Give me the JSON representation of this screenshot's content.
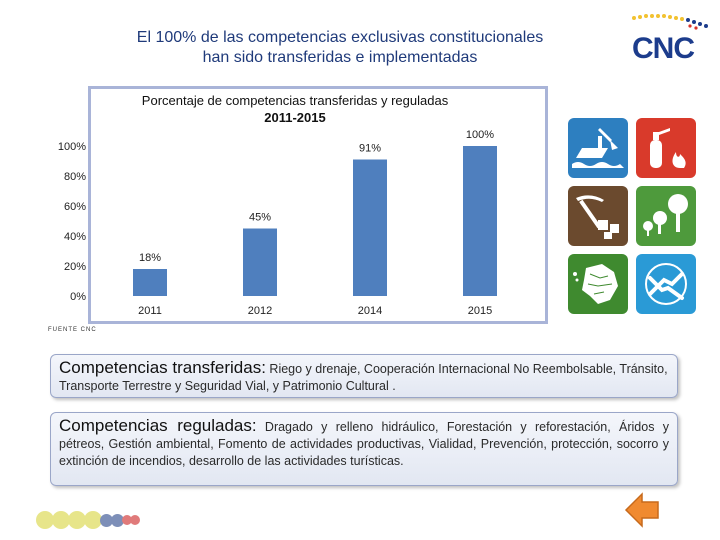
{
  "slide": {
    "title_line1": "El 100% de las competencias exclusivas constitucionales",
    "title_line2": "han sido transferidas e implementadas"
  },
  "logo": {
    "text": "CNC"
  },
  "chart_data": {
    "type": "bar",
    "title_line1": "Porcentaje de competencias transferidas y reguladas",
    "title_line2": "2011-2015",
    "categories": [
      "2011",
      "2012",
      "2014",
      "2015"
    ],
    "values": [
      18,
      45,
      91,
      100
    ],
    "value_labels": [
      "18%",
      "45%",
      "91%",
      "100%"
    ],
    "ytick_values": [
      0,
      20,
      40,
      60,
      80,
      100
    ],
    "ytick_labels": [
      "0%",
      "20%",
      "40%",
      "60%",
      "80%",
      "100%"
    ],
    "ylim": [
      0,
      100
    ],
    "bar_color": "#4f7fbe",
    "grid": false,
    "legend": "none",
    "xlabel": "",
    "ylabel": ""
  },
  "source_note": "FUENTE CNC",
  "icons": [
    {
      "name": "dredge-icon",
      "color": "#2d7fc0"
    },
    {
      "name": "fire-extinguisher-icon",
      "color": "#d93a2b"
    },
    {
      "name": "mining-icon",
      "color": "#6b4a2e"
    },
    {
      "name": "forest-icon",
      "color": "#4e9a3c"
    },
    {
      "name": "ecuador-map-icon",
      "color": "#3f8a2f"
    },
    {
      "name": "cooperation-hands-icon",
      "color": "#2a9ad6"
    }
  ],
  "box_transferidas": {
    "heading": "Competencias transferidas:",
    "text": " Riego y drenaje, Cooperación Internacional No Reembolsable, Tránsito, Transporte Terrestre y Seguridad Vial, y Patrimonio Cultural ."
  },
  "box_reguladas": {
    "heading": "Competencias reguladas:",
    "text": " Dragado y relleno hidráulico, Forestación y reforestación, Áridos y pétreos, Gestión ambiental, Fomento de actividades productivas, Vialidad, Prevención, protección, socorro y extinción de incendios, desarrollo de las actividades turísticas."
  },
  "decor_dots": [
    "#e7e58a",
    "#e7e58a",
    "#e7e58a",
    "#e7e58a",
    "#7d8fb8",
    "#7d8fb8",
    "#e07a7a",
    "#e07a7a"
  ],
  "nav": {
    "back_color": "#f08a30"
  }
}
